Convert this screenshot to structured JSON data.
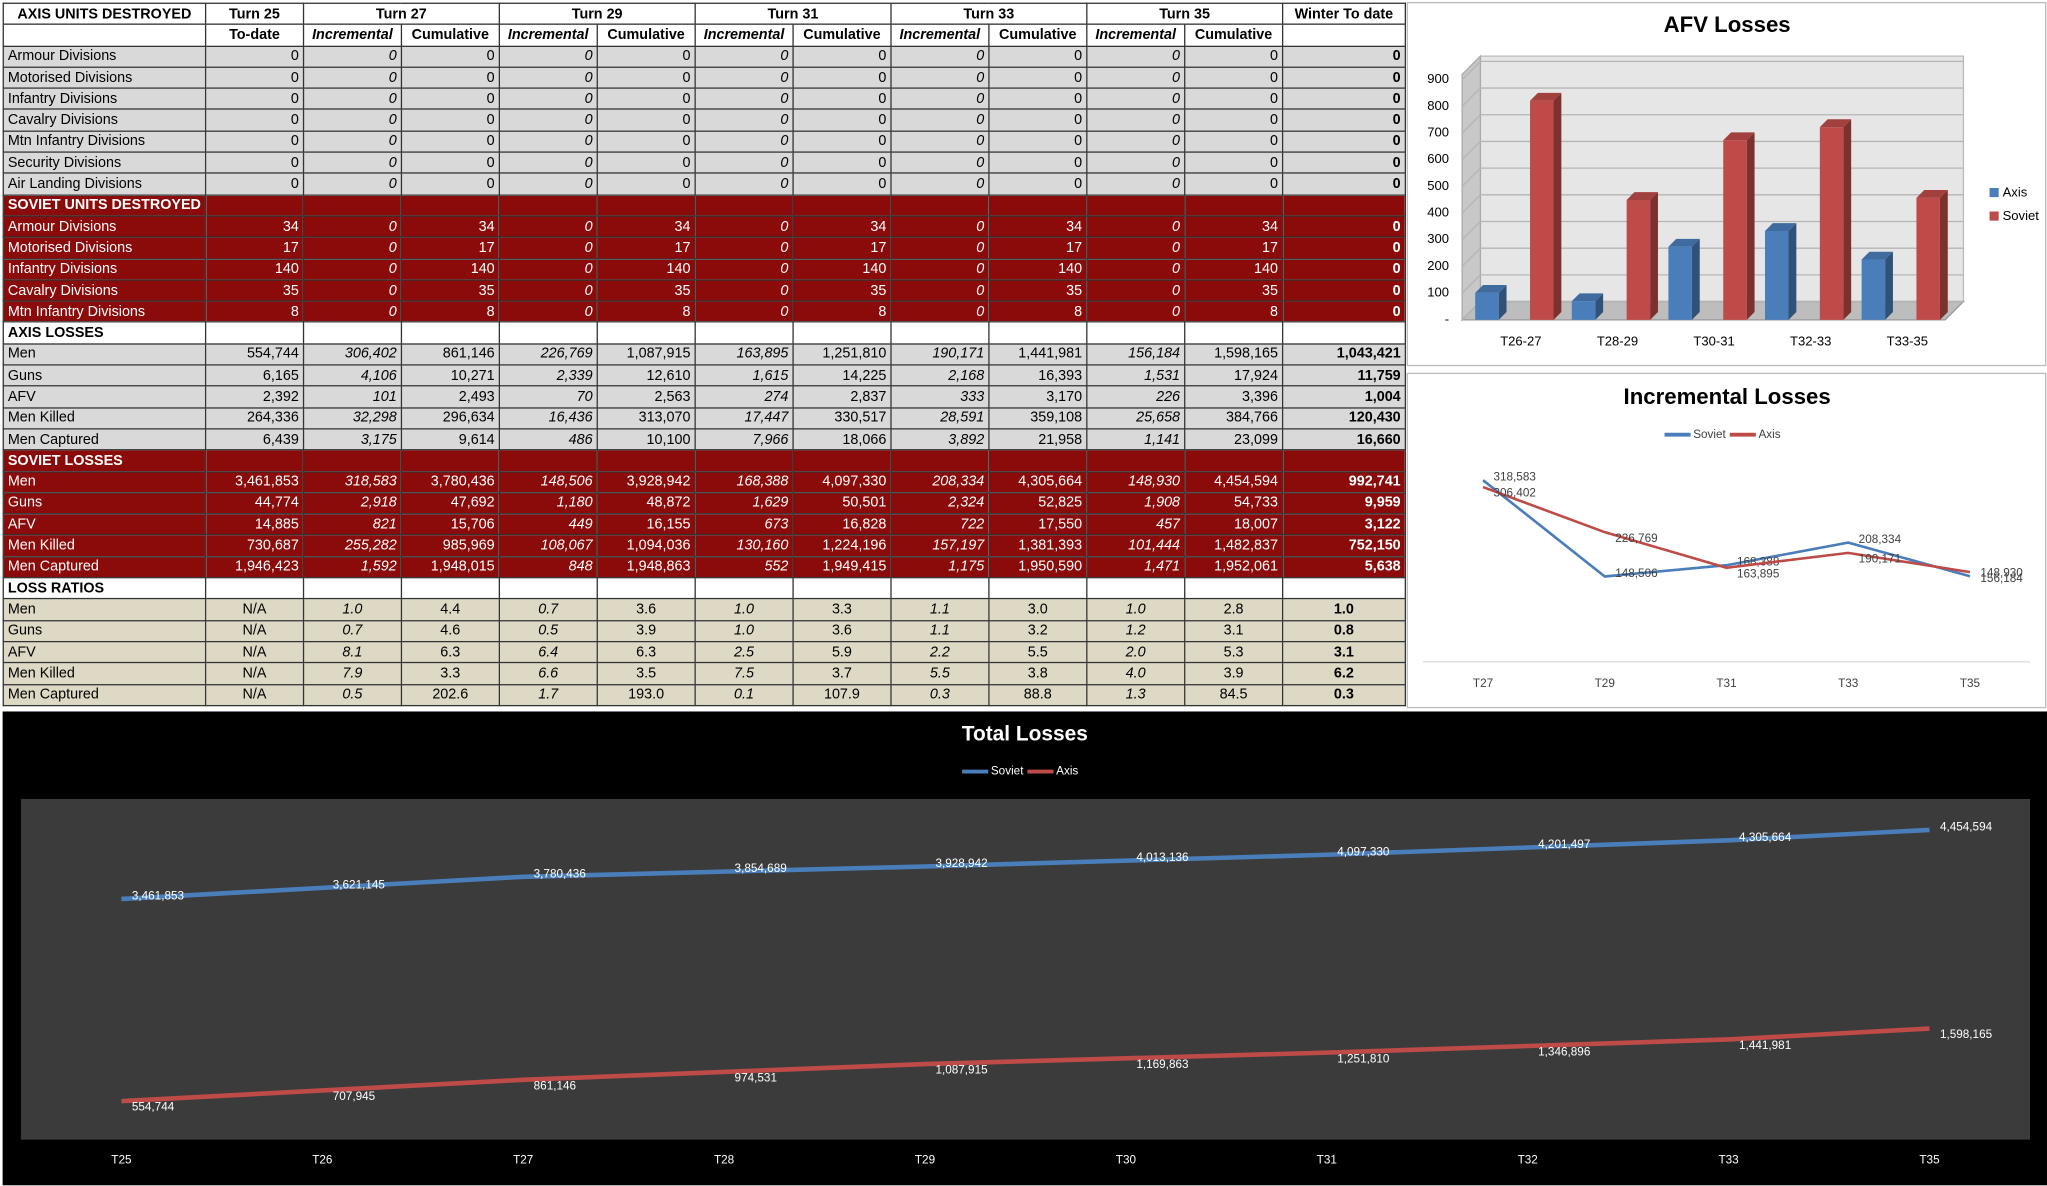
{
  "table": {
    "header": [
      "AXIS UNITS DESTROYED",
      "Turn 25",
      "Turn 27",
      "Turn 29",
      "Turn 31",
      "Turn 33",
      "Turn 35",
      "Winter To date"
    ],
    "subheader": [
      "To-date",
      "Incremental",
      "Cumulative",
      "Incremental",
      "Cumulative",
      "Incremental",
      "Cumulative",
      "Incremental",
      "Cumulative",
      "Incremental",
      "Cumulative"
    ],
    "sections": [
      {
        "rows": [
          [
            "Armour Divisions",
            "0",
            "0",
            "0",
            "0",
            "0",
            "0",
            "0",
            "0",
            "0",
            "0",
            "0",
            "0"
          ],
          [
            "Motorised Divisions",
            "0",
            "0",
            "0",
            "0",
            "0",
            "0",
            "0",
            "0",
            "0",
            "0",
            "0",
            "0"
          ],
          [
            "Infantry Divisions",
            "0",
            "0",
            "0",
            "0",
            "0",
            "0",
            "0",
            "0",
            "0",
            "0",
            "0",
            "0"
          ],
          [
            "Cavalry Divisions",
            "0",
            "0",
            "0",
            "0",
            "0",
            "0",
            "0",
            "0",
            "0",
            "0",
            "0",
            "0"
          ],
          [
            "Mtn Infantry Divisions",
            "0",
            "0",
            "0",
            "0",
            "0",
            "0",
            "0",
            "0",
            "0",
            "0",
            "0",
            "0"
          ],
          [
            "Security Divisions",
            "0",
            "0",
            "0",
            "0",
            "0",
            "0",
            "0",
            "0",
            "0",
            "0",
            "0",
            "0"
          ],
          [
            "Air Landing Divisions",
            "0",
            "0",
            "0",
            "0",
            "0",
            "0",
            "0",
            "0",
            "0",
            "0",
            "0",
            "0"
          ]
        ]
      },
      {
        "title": "SOVIET UNITS DESTROYED",
        "rows": [
          [
            "Armour Divisions",
            "34",
            "0",
            "34",
            "0",
            "34",
            "0",
            "34",
            "0",
            "34",
            "0",
            "34",
            "0"
          ],
          [
            "Motorised Divisions",
            "17",
            "0",
            "17",
            "0",
            "17",
            "0",
            "17",
            "0",
            "17",
            "0",
            "17",
            "0"
          ],
          [
            "Infantry Divisions",
            "140",
            "0",
            "140",
            "0",
            "140",
            "0",
            "140",
            "0",
            "140",
            "0",
            "140",
            "0"
          ],
          [
            "Cavalry Divisions",
            "35",
            "0",
            "35",
            "0",
            "35",
            "0",
            "35",
            "0",
            "35",
            "0",
            "35",
            "0"
          ],
          [
            "Mtn Infantry Divisions",
            "8",
            "0",
            "8",
            "0",
            "8",
            "0",
            "8",
            "0",
            "8",
            "0",
            "8",
            "0"
          ]
        ]
      },
      {
        "title": "AXIS LOSSES",
        "rows": [
          [
            "Men",
            "554,744",
            "306,402",
            "861,146",
            "226,769",
            "1,087,915",
            "163,895",
            "1,251,810",
            "190,171",
            "1,441,981",
            "156,184",
            "1,598,165",
            "1,043,421"
          ],
          [
            "Guns",
            "6,165",
            "4,106",
            "10,271",
            "2,339",
            "12,610",
            "1,615",
            "14,225",
            "2,168",
            "16,393",
            "1,531",
            "17,924",
            "11,759"
          ],
          [
            "AFV",
            "2,392",
            "101",
            "2,493",
            "70",
            "2,563",
            "274",
            "2,837",
            "333",
            "3,170",
            "226",
            "3,396",
            "1,004"
          ],
          [
            "Men Killed",
            "264,336",
            "32,298",
            "296,634",
            "16,436",
            "313,070",
            "17,447",
            "330,517",
            "28,591",
            "359,108",
            "25,658",
            "384,766",
            "120,430"
          ],
          [
            "Men Captured",
            "6,439",
            "3,175",
            "9,614",
            "486",
            "10,100",
            "7,966",
            "18,066",
            "3,892",
            "21,958",
            "1,141",
            "23,099",
            "16,660"
          ]
        ]
      },
      {
        "title": "SOVIET LOSSES",
        "rows": [
          [
            "Men",
            "3,461,853",
            "318,583",
            "3,780,436",
            "148,506",
            "3,928,942",
            "168,388",
            "4,097,330",
            "208,334",
            "4,305,664",
            "148,930",
            "4,454,594",
            "992,741"
          ],
          [
            "Guns",
            "44,774",
            "2,918",
            "47,692",
            "1,180",
            "48,872",
            "1,629",
            "50,501",
            "2,324",
            "52,825",
            "1,908",
            "54,733",
            "9,959"
          ],
          [
            "AFV",
            "14,885",
            "821",
            "15,706",
            "449",
            "16,155",
            "673",
            "16,828",
            "722",
            "17,550",
            "457",
            "18,007",
            "3,122"
          ],
          [
            "Men Killed",
            "730,687",
            "255,282",
            "985,969",
            "108,067",
            "1,094,036",
            "130,160",
            "1,224,196",
            "157,197",
            "1,381,393",
            "101,444",
            "1,482,837",
            "752,150"
          ],
          [
            "Men Captured",
            "1,946,423",
            "1,592",
            "1,948,015",
            "848",
            "1,948,863",
            "552",
            "1,949,415",
            "1,175",
            "1,950,590",
            "1,471",
            "1,952,061",
            "5,638"
          ]
        ]
      },
      {
        "title": "LOSS RATIOS",
        "rows": [
          [
            "Men",
            "N/A",
            "1.0",
            "4.4",
            "0.7",
            "3.6",
            "1.0",
            "3.3",
            "1.1",
            "3.0",
            "1.0",
            "2.8",
            "1.0"
          ],
          [
            "Guns",
            "N/A",
            "0.7",
            "4.6",
            "0.5",
            "3.9",
            "1.0",
            "3.6",
            "1.1",
            "3.2",
            "1.2",
            "3.1",
            "0.8"
          ],
          [
            "AFV",
            "N/A",
            "8.1",
            "6.3",
            "6.4",
            "6.3",
            "2.5",
            "5.9",
            "2.2",
            "5.5",
            "2.0",
            "5.3",
            "3.1"
          ],
          [
            "Men Killed",
            "N/A",
            "7.9",
            "3.3",
            "6.6",
            "3.5",
            "7.5",
            "3.7",
            "5.5",
            "3.8",
            "4.0",
            "3.9",
            "6.2"
          ],
          [
            "Men Captured",
            "N/A",
            "0.5",
            "202.6",
            "1.7",
            "193.0",
            "0.1",
            "107.9",
            "0.3",
            "88.8",
            "1.3",
            "84.5",
            "0.3"
          ]
        ]
      }
    ]
  },
  "chart_data": [
    {
      "type": "bar",
      "title": "AFV Losses",
      "categories": [
        "T26-27",
        "T28-29",
        "T30-31",
        "T32-33",
        "T33-35"
      ],
      "series": [
        {
          "name": "Axis",
          "color": "#4a7ebb",
          "values": [
            101,
            70,
            274,
            333,
            226
          ]
        },
        {
          "name": "Soviet",
          "color": "#be4b48",
          "values": [
            821,
            449,
            673,
            722,
            457
          ]
        }
      ],
      "ylim": [
        0,
        900
      ],
      "yticks": [
        {
          "value": 0,
          "label": "-"
        },
        100,
        200,
        300,
        400,
        500,
        600,
        700,
        800,
        900
      ],
      "grid": true,
      "legend": "right"
    },
    {
      "type": "line",
      "title": "Incremental Losses",
      "categories": [
        "T27",
        "T29",
        "T31",
        "T33",
        "T35"
      ],
      "series": [
        {
          "name": "Soviet",
          "color": "#4a7ebb",
          "values": [
            318583,
            148506,
            168388,
            208334,
            148930
          ],
          "value_labels": [
            "318,583",
            "148,506",
            "168,388",
            "208,334",
            "148,930"
          ]
        },
        {
          "name": "Axis",
          "color": "#be4b48",
          "values": [
            306402,
            226769,
            163895,
            190171,
            156184
          ],
          "value_labels": [
            "306,402",
            "226,769",
            "163,895",
            "190,171",
            "156,184"
          ]
        }
      ],
      "legend": "top"
    },
    {
      "type": "line",
      "title": "Total Losses",
      "categories": [
        "T25",
        "T26",
        "T27",
        "T28",
        "T29",
        "T30",
        "T31",
        "T32",
        "T33",
        "T35"
      ],
      "series": [
        {
          "name": "Soviet",
          "color": "#4a7ebb",
          "values": [
            3461853,
            3621145,
            3780436,
            3854689,
            3928942,
            4013136,
            4097330,
            4201497,
            4305664,
            4454594
          ],
          "value_labels": [
            "3,461,853",
            "3,621,145",
            "3,780,436",
            "3,854,689",
            "3,928,942",
            "4,013,136",
            "4,097,330",
            "4,201,497",
            "4,305,664",
            "4,454,594"
          ]
        },
        {
          "name": "Axis",
          "color": "#be4b48",
          "values": [
            554744,
            707945,
            861146,
            974531,
            1087915,
            1169863,
            1251810,
            1346896,
            1441981,
            1598165
          ],
          "value_labels": [
            "554,744",
            "707,945",
            "861,146",
            "974,531",
            "1,087,915",
            "1,169,863",
            "1,251,810",
            "1,346,896",
            "1,441,981",
            "1,598,165"
          ]
        }
      ],
      "legend": "top"
    }
  ]
}
